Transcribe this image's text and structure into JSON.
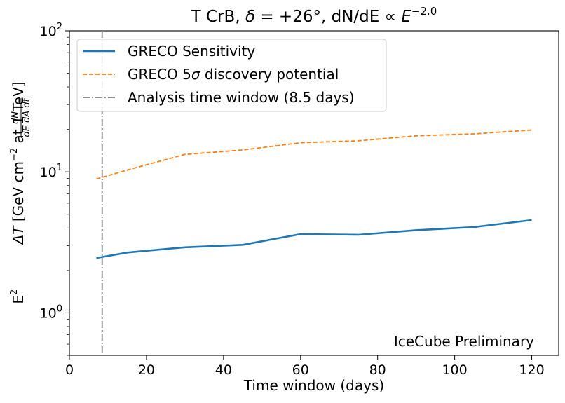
{
  "chart_data": {
    "type": "line",
    "title": "T CrB, δ = +26°, dN/dE ∝ E^−2.0",
    "title_parts": {
      "prefix": "T CrB, ",
      "delta": "δ",
      "dec_value": " = +26°",
      "mid": ", dN/dE ∝ ",
      "energy": "E",
      "exponent": "−2.0"
    },
    "xlabel": "Time window (days)",
    "ylabel": "E² (dN / dE dA dt) ΔT [GeV cm⁻² at 1 TeV]",
    "ylabel_parts": {
      "e": "E",
      "e_sup": "2",
      "num": "dN",
      "den": "dE dA dt",
      "delta_t": "ΔT",
      "unit_a": " [GeV cm",
      "unit_sup": "−2",
      "unit_b": " at 1 TeV]"
    },
    "xlim": [
      0,
      127
    ],
    "ylim": [
      0.5,
      100
    ],
    "yscale": "log",
    "x_ticks": [
      0,
      20,
      40,
      60,
      80,
      100,
      120
    ],
    "x_tick_labels": [
      "0",
      "20",
      "40",
      "60",
      "80",
      "100",
      "120"
    ],
    "y_ticks": [
      {
        "base": "10",
        "exp": "0",
        "value": 1
      },
      {
        "base": "10",
        "exp": "1",
        "value": 10
      },
      {
        "base": "10",
        "exp": "2",
        "value": 100
      }
    ],
    "legend_position": "upper-left",
    "series": [
      {
        "name": "GRECO Sensitivity",
        "style": "solid",
        "color": "#1f77b4",
        "x": [
          7,
          15,
          30,
          45,
          60,
          75,
          90,
          105,
          120
        ],
        "y": [
          2.45,
          2.68,
          2.92,
          3.04,
          3.62,
          3.58,
          3.86,
          4.06,
          4.55
        ]
      },
      {
        "name_prefix": "GRECO 5",
        "name_sigma": "σ",
        "name_suffix": " discovery potential",
        "style": "dashed",
        "color": "#ff7f0e",
        "x": [
          7,
          15,
          30,
          45,
          60,
          75,
          90,
          105,
          120
        ],
        "y": [
          8.9,
          10.3,
          13.3,
          14.3,
          16.1,
          16.6,
          18.0,
          18.6,
          19.8
        ]
      }
    ],
    "vline": {
      "name": "Analysis time window (8.5 days)",
      "x": 8.5,
      "style": "dashdot",
      "color": "#808080"
    },
    "annotation": {
      "text": "IceCube Preliminary",
      "color": "#ff0000",
      "position": "bottom-right"
    }
  }
}
